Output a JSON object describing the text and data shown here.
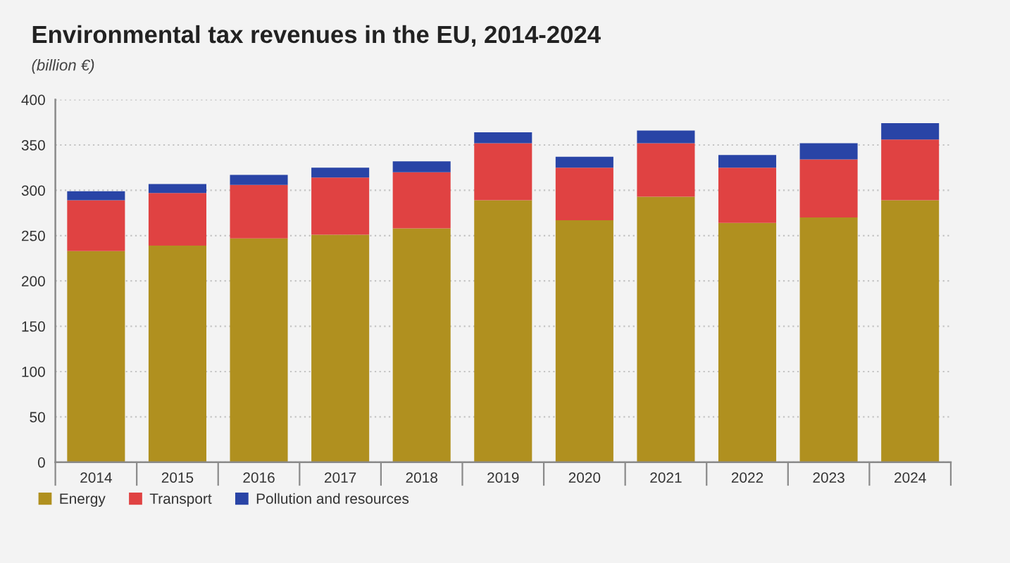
{
  "chart_data": {
    "type": "bar",
    "title": "Environmental tax revenues in the EU, 2014-2024",
    "subtitle": "(billion €)",
    "categories": [
      "2014",
      "2015",
      "2016",
      "2017",
      "2018",
      "2019",
      "2020",
      "2021",
      "2022",
      "2023",
      "2024"
    ],
    "series": [
      {
        "name": "Energy",
        "color": "#b0901f",
        "values": [
          233,
          239,
          247,
          251,
          258,
          289,
          267,
          293,
          264,
          270,
          289
        ]
      },
      {
        "name": "Transport",
        "color": "#e04242",
        "values": [
          56,
          58,
          59,
          63,
          62,
          63,
          58,
          59,
          61,
          64,
          67
        ]
      },
      {
        "name": "Pollution and resources",
        "color": "#2944a6",
        "values": [
          10,
          10,
          11,
          11,
          12,
          12,
          12,
          14,
          14,
          18,
          18
        ]
      }
    ],
    "stacked": true,
    "ylim": [
      0,
      400
    ],
    "yticks": [
      0,
      50,
      100,
      150,
      200,
      250,
      300,
      350,
      400
    ],
    "grid": "y",
    "legend": "bottom left"
  }
}
